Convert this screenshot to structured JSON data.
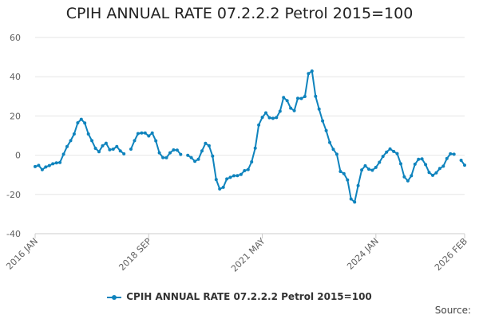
{
  "colors": {
    "series": "#0e83bd",
    "grid": "#e6e6e6",
    "axis_text": "#606060"
  },
  "footer": {
    "source_label": "Source:"
  },
  "chart_data": {
    "type": "line",
    "title": "CPIH ANNUAL RATE 07.2.2.2 Petrol 2015=100",
    "xlabel": "",
    "ylabel": "",
    "ylim": [
      -40,
      60
    ],
    "yticks": [
      60,
      40,
      20,
      0,
      -20,
      -40
    ],
    "x_start": "2016-01",
    "x_end": "2026-02",
    "xticks": [
      {
        "month": "2016-01",
        "label": "2016 JAN"
      },
      {
        "month": "2018-09",
        "label": "2018 SEP"
      },
      {
        "month": "2021-05",
        "label": "2021 MAY"
      },
      {
        "month": "2024-01",
        "label": "2024 JAN"
      },
      {
        "month": "2026-02",
        "label": "2026 FEB"
      }
    ],
    "grid": true,
    "legend": "bottom",
    "series": [
      {
        "name": "CPIH ANNUAL RATE 07.2.2.2 Petrol 2015=100",
        "start": "2016-01",
        "values": [
          -5.8,
          -5.2,
          -7.4,
          -6.0,
          -5.3,
          -4.4,
          -3.9,
          -3.7,
          0.5,
          4.4,
          7.4,
          10.8,
          16.5,
          18.3,
          16.4,
          10.8,
          7.4,
          3.5,
          1.8,
          4.8,
          6.1,
          2.8,
          3.1,
          4.4,
          2.2,
          0.7,
          null,
          3.1,
          7.4,
          11.0,
          11.3,
          11.3,
          9.8,
          11.3,
          7.3,
          1.2,
          -1.2,
          -1.3,
          1.2,
          2.7,
          2.6,
          0.4,
          null,
          -0.1,
          -1.2,
          -3.1,
          -2.1,
          2.2,
          6.0,
          4.8,
          -0.5,
          -12.4,
          -17.2,
          -16.4,
          -12.1,
          -11.3,
          -10.5,
          -10.4,
          -9.8,
          -7.9,
          -7.3,
          -3.4,
          3.6,
          15.4,
          19.3,
          21.6,
          19.1,
          18.8,
          19.2,
          22.4,
          29.4,
          27.8,
          24.0,
          22.7,
          29.0,
          28.9,
          29.9,
          41.6,
          42.9,
          30.0,
          23.5,
          17.5,
          12.5,
          6.5,
          3.0,
          0.5,
          -8.3,
          -9.4,
          -12.6,
          -22.3,
          -23.9,
          -15.5,
          -7.5,
          -5.4,
          -7.1,
          -7.7,
          -6.2,
          -3.6,
          -0.6,
          1.6,
          3.2,
          1.9,
          0.8,
          -4.4,
          -11.0,
          -13.1,
          -10.5,
          -4.6,
          -2.1,
          -1.9,
          -4.8,
          -8.8,
          -10.3,
          -9.0,
          -6.8,
          -5.6,
          -1.7,
          0.7,
          0.5,
          null,
          -2.6,
          -5.1
        ]
      }
    ]
  }
}
